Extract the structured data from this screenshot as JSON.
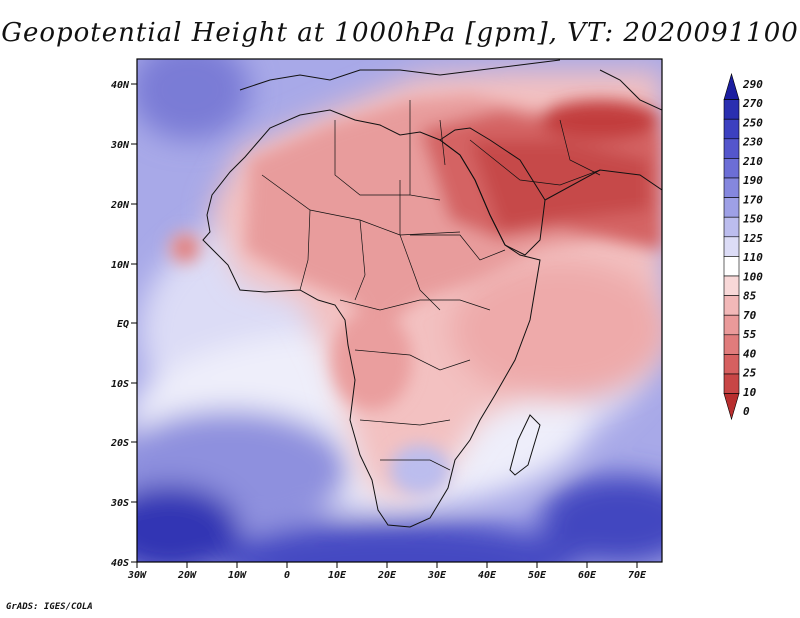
{
  "title": "Geopotential Height at 1000hPa [gpm], VT: 2020091100",
  "footer": "GrADS: IGES/COLA",
  "map": {
    "lat_labels": [
      "40N",
      "30N",
      "20N",
      "10N",
      "EQ",
      "10S",
      "20S",
      "30S",
      "40S"
    ],
    "lon_labels": [
      "30W",
      "20W",
      "10W",
      "0",
      "10E",
      "20E",
      "30E",
      "40E",
      "50E",
      "60E",
      "70E"
    ]
  },
  "colorbar": {
    "labels": [
      "290",
      "270",
      "250",
      "230",
      "210",
      "190",
      "170",
      "150",
      "125",
      "110",
      "100",
      "85",
      "70",
      "55",
      "40",
      "25",
      "10",
      "0"
    ],
    "colors": [
      "#1c1ea0",
      "#2a2fb0",
      "#3c40c0",
      "#5456cc",
      "#6c6ed6",
      "#8587de",
      "#9ea0e6",
      "#bcbdee",
      "#dcdcf6",
      "#ffffff",
      "#f8d8d8",
      "#f2b8b8",
      "#ea9a9a",
      "#e07c7c",
      "#d66060",
      "#c84646",
      "#b82e2e"
    ]
  }
}
